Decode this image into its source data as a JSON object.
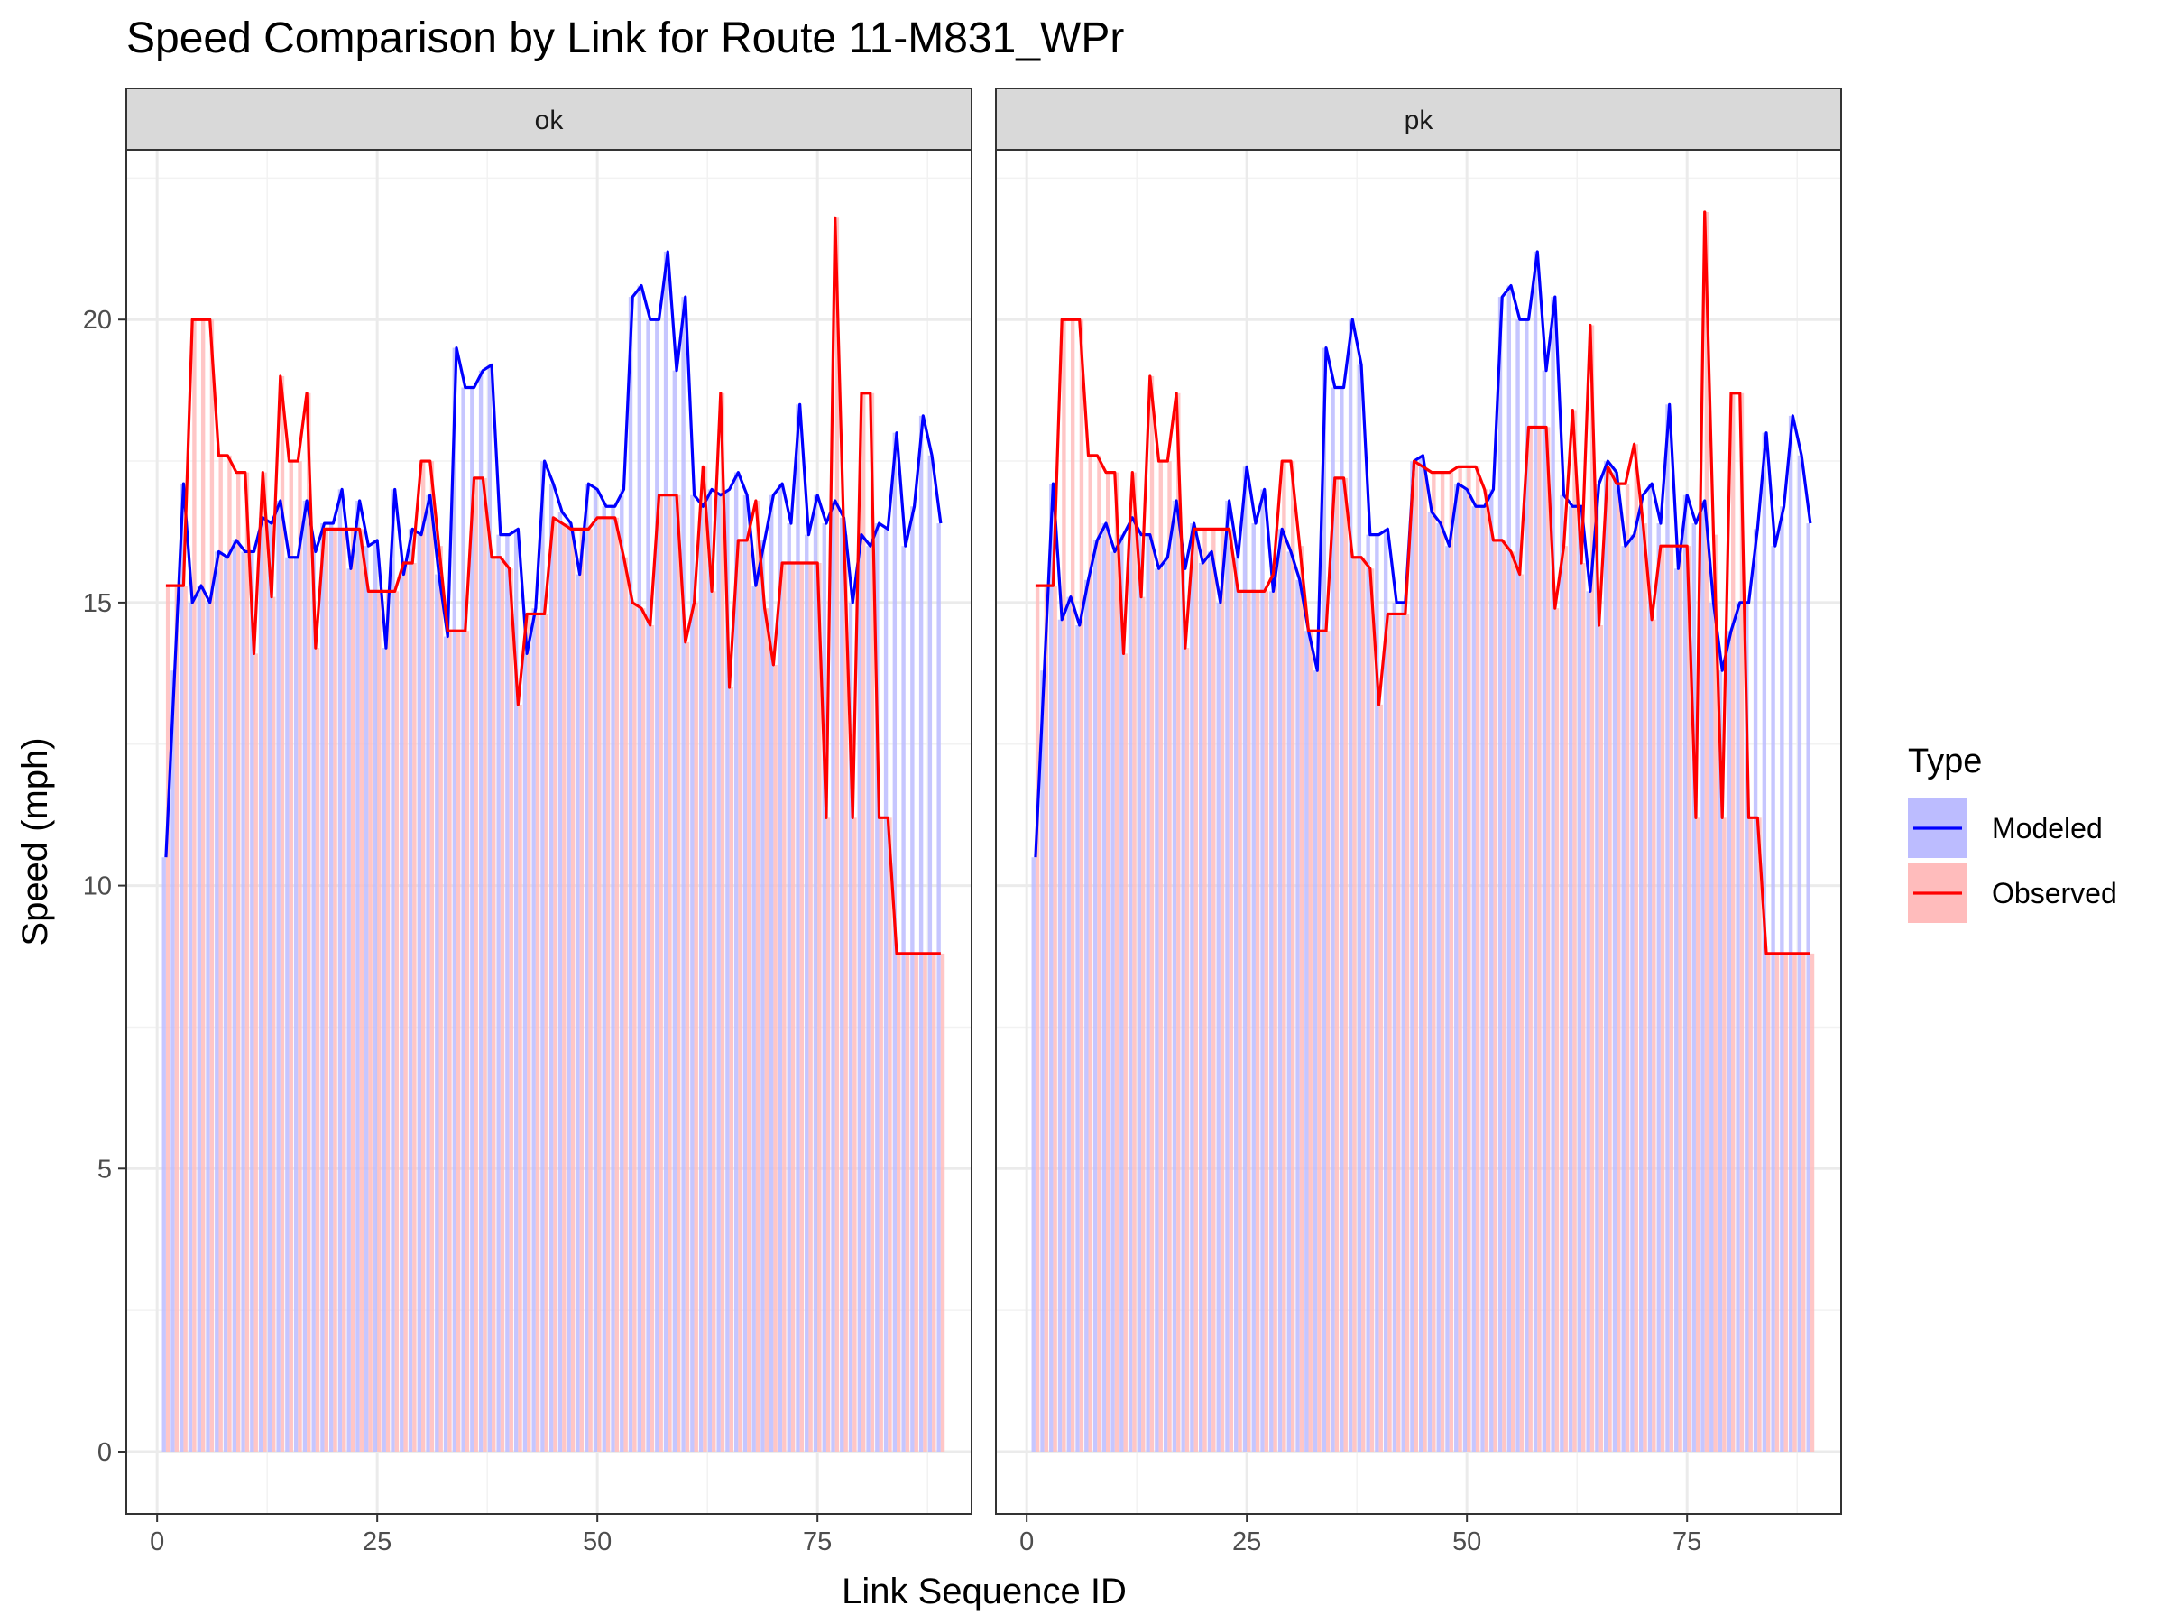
{
  "chart_data": {
    "type": "line",
    "title": "Speed Comparison by Link for Route 11-M831_WPr",
    "xlabel": "Link Sequence ID",
    "ylabel": "Speed (mph)",
    "xlim": [
      -3.5,
      92.5
    ],
    "ylim": [
      -1.1,
      23.0
    ],
    "x_ticks": [
      0,
      25,
      50,
      75
    ],
    "y_ticks": [
      0,
      5,
      10,
      15,
      20
    ],
    "grid": true,
    "legend": {
      "title": "Type",
      "position": "right",
      "entries": [
        {
          "name": "Modeled",
          "line_color": "#0000ff",
          "fill_color": "#bcbcff"
        },
        {
          "name": "Observed",
          "line_color": "#ff0000",
          "fill_color": "#ffbcbc"
        }
      ]
    },
    "panels": [
      {
        "label": "ok",
        "series": [
          {
            "name": "Modeled",
            "x": [
              1,
              2,
              3,
              4,
              5,
              6,
              7,
              8,
              9,
              10,
              11,
              12,
              13,
              14,
              15,
              16,
              17,
              18,
              19,
              20,
              21,
              22,
              23,
              24,
              25,
              26,
              27,
              28,
              29,
              30,
              31,
              32,
              33,
              34,
              35,
              36,
              37,
              38,
              39,
              40,
              41,
              42,
              43,
              44,
              45,
              46,
              47,
              48,
              49,
              50,
              51,
              52,
              53,
              54,
              55,
              56,
              57,
              58,
              59,
              60,
              61,
              62,
              63,
              64,
              65,
              66,
              67,
              68,
              69,
              70,
              71,
              72,
              73,
              74,
              75,
              76,
              77,
              78,
              79,
              80,
              81,
              82,
              83,
              84,
              85,
              86,
              87,
              88,
              89
            ],
            "values": [
              10.5,
              13.8,
              17.1,
              15.0,
              15.3,
              15.0,
              15.9,
              15.8,
              16.1,
              15.9,
              15.9,
              16.5,
              16.4,
              16.8,
              15.8,
              15.8,
              16.8,
              15.9,
              16.4,
              16.4,
              17.0,
              15.6,
              16.8,
              16.0,
              16.1,
              14.2,
              17.0,
              15.5,
              16.3,
              16.2,
              16.9,
              15.5,
              14.4,
              19.5,
              18.8,
              18.8,
              19.1,
              19.2,
              16.2,
              16.2,
              16.3,
              14.1,
              14.9,
              17.5,
              17.1,
              16.6,
              16.4,
              15.5,
              17.1,
              17.0,
              16.7,
              16.7,
              17.0,
              20.4,
              20.6,
              20.0,
              20.0,
              21.2,
              19.1,
              20.4,
              16.9,
              16.7,
              17.0,
              16.9,
              17.0,
              17.3,
              16.9,
              15.3,
              16.1,
              16.9,
              17.1,
              16.4,
              18.5,
              16.2,
              16.9,
              16.4,
              16.8,
              16.5,
              15.0,
              16.2,
              16.0,
              16.4,
              16.3,
              18.0,
              16.0,
              16.7,
              18.3,
              17.6,
              16.4
            ]
          },
          {
            "name": "Observed",
            "x": [
              1,
              2,
              3,
              4,
              5,
              6,
              7,
              8,
              9,
              10,
              11,
              12,
              13,
              14,
              15,
              16,
              17,
              18,
              19,
              20,
              21,
              22,
              23,
              24,
              25,
              26,
              27,
              28,
              29,
              30,
              31,
              32,
              33,
              34,
              35,
              36,
              37,
              38,
              39,
              40,
              41,
              42,
              43,
              44,
              45,
              46,
              47,
              48,
              49,
              50,
              51,
              52,
              53,
              54,
              55,
              56,
              57,
              58,
              59,
              60,
              61,
              62,
              63,
              64,
              65,
              66,
              67,
              68,
              69,
              70,
              71,
              72,
              73,
              74,
              75,
              76,
              77,
              78,
              79,
              80,
              81,
              82,
              83,
              84,
              85,
              86,
              87,
              88,
              89
            ],
            "values": [
              15.3,
              15.3,
              15.3,
              20.0,
              20.0,
              20.0,
              17.6,
              17.6,
              17.3,
              17.3,
              14.1,
              17.3,
              15.1,
              19.0,
              17.5,
              17.5,
              18.7,
              14.2,
              16.3,
              16.3,
              16.3,
              16.3,
              16.3,
              15.2,
              15.2,
              15.2,
              15.2,
              15.7,
              15.7,
              17.5,
              17.5,
              16.0,
              14.5,
              14.5,
              14.5,
              17.2,
              17.2,
              15.8,
              15.8,
              15.6,
              13.2,
              14.8,
              14.8,
              14.8,
              16.5,
              16.4,
              16.3,
              16.3,
              16.3,
              16.5,
              16.5,
              16.5,
              15.8,
              15.0,
              14.9,
              14.6,
              16.9,
              16.9,
              16.9,
              14.3,
              15.0,
              17.4,
              15.2,
              18.7,
              13.5,
              16.1,
              16.1,
              16.8,
              14.9,
              13.9,
              15.7,
              15.7,
              15.7,
              15.7,
              15.7,
              11.2,
              21.8,
              16.2,
              11.2,
              18.7,
              18.7,
              11.2,
              11.2,
              8.8,
              8.8,
              8.8,
              8.8,
              8.8,
              8.8
            ]
          }
        ]
      },
      {
        "label": "pk",
        "series": [
          {
            "name": "Modeled",
            "x": [
              1,
              2,
              3,
              4,
              5,
              6,
              7,
              8,
              9,
              10,
              11,
              12,
              13,
              14,
              15,
              16,
              17,
              18,
              19,
              20,
              21,
              22,
              23,
              24,
              25,
              26,
              27,
              28,
              29,
              30,
              31,
              32,
              33,
              34,
              35,
              36,
              37,
              38,
              39,
              40,
              41,
              42,
              43,
              44,
              45,
              46,
              47,
              48,
              49,
              50,
              51,
              52,
              53,
              54,
              55,
              56,
              57,
              58,
              59,
              60,
              61,
              62,
              63,
              64,
              65,
              66,
              67,
              68,
              69,
              70,
              71,
              72,
              73,
              74,
              75,
              76,
              77,
              78,
              79,
              80,
              81,
              82,
              83,
              84,
              85,
              86,
              87,
              88,
              89
            ],
            "values": [
              10.5,
              13.8,
              17.1,
              14.7,
              15.1,
              14.6,
              15.4,
              16.1,
              16.4,
              15.9,
              16.2,
              16.5,
              16.2,
              16.2,
              15.6,
              15.8,
              16.8,
              15.6,
              16.4,
              15.7,
              15.9,
              15.0,
              16.8,
              15.8,
              17.4,
              16.4,
              17.0,
              15.2,
              16.3,
              15.9,
              15.4,
              14.5,
              13.8,
              19.5,
              18.8,
              18.8,
              20.0,
              19.2,
              16.2,
              16.2,
              16.3,
              15.0,
              15.0,
              17.5,
              17.6,
              16.6,
              16.4,
              16.0,
              17.1,
              17.0,
              16.7,
              16.7,
              17.0,
              20.4,
              20.6,
              20.0,
              20.0,
              21.2,
              19.1,
              20.4,
              16.9,
              16.7,
              16.7,
              15.2,
              17.1,
              17.5,
              17.3,
              16.0,
              16.2,
              16.9,
              17.1,
              16.4,
              18.5,
              15.6,
              16.9,
              16.4,
              16.8,
              15.0,
              13.8,
              14.5,
              15.0,
              15.0,
              16.3,
              18.0,
              16.0,
              16.7,
              18.3,
              17.6,
              16.4
            ]
          },
          {
            "name": "Observed",
            "x": [
              1,
              2,
              3,
              4,
              5,
              6,
              7,
              8,
              9,
              10,
              11,
              12,
              13,
              14,
              15,
              16,
              17,
              18,
              19,
              20,
              21,
              22,
              23,
              24,
              25,
              26,
              27,
              28,
              29,
              30,
              31,
              32,
              33,
              34,
              35,
              36,
              37,
              38,
              39,
              40,
              41,
              42,
              43,
              44,
              45,
              46,
              47,
              48,
              49,
              50,
              51,
              52,
              53,
              54,
              55,
              56,
              57,
              58,
              59,
              60,
              61,
              62,
              63,
              64,
              65,
              66,
              67,
              68,
              69,
              70,
              71,
              72,
              73,
              74,
              75,
              76,
              77,
              78,
              79,
              80,
              81,
              82,
              83,
              84,
              85,
              86,
              87,
              88,
              89
            ],
            "values": [
              15.3,
              15.3,
              15.3,
              20.0,
              20.0,
              20.0,
              17.6,
              17.6,
              17.3,
              17.3,
              14.1,
              17.3,
              15.1,
              19.0,
              17.5,
              17.5,
              18.7,
              14.2,
              16.3,
              16.3,
              16.3,
              16.3,
              16.3,
              15.2,
              15.2,
              15.2,
              15.2,
              15.5,
              17.5,
              17.5,
              16.0,
              14.5,
              14.5,
              14.5,
              17.2,
              17.2,
              15.8,
              15.8,
              15.6,
              13.2,
              14.8,
              14.8,
              14.8,
              17.5,
              17.4,
              17.3,
              17.3,
              17.3,
              17.4,
              17.4,
              17.4,
              17.0,
              16.1,
              16.1,
              15.9,
              15.5,
              18.1,
              18.1,
              18.1,
              14.9,
              16.0,
              18.4,
              15.7,
              19.9,
              14.6,
              17.4,
              17.1,
              17.1,
              17.8,
              16.4,
              14.7,
              16.0,
              16.0,
              16.0,
              16.0,
              11.2,
              21.9,
              16.2,
              11.2,
              18.7,
              18.7,
              11.2,
              11.2,
              8.8,
              8.8,
              8.8,
              8.8,
              8.8,
              8.8
            ]
          }
        ]
      }
    ]
  }
}
